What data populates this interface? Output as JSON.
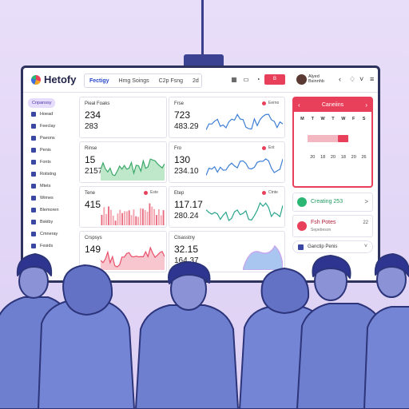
{
  "app": {
    "logo_text": "Hetofy"
  },
  "header": {
    "tabs": [
      {
        "label": "Fectigy",
        "active": true
      },
      {
        "label": "Hmg Soings",
        "active": false
      },
      {
        "label": "C2p Fsng",
        "active": false
      },
      {
        "label": "2d",
        "active": false
      },
      {
        "label": "B",
        "active": false
      }
    ],
    "user": {
      "name": "Alyed",
      "role": "Bsinnhb"
    },
    "accent": "#e8405a"
  },
  "sidebar": {
    "items": [
      {
        "label": "Cnpanssy",
        "icon": "grid-icon",
        "active": true
      },
      {
        "label": "Hoead",
        "icon": "home-icon"
      },
      {
        "label": "Feeclay",
        "icon": "pie-icon"
      },
      {
        "label": "Paeons",
        "icon": "user-icon"
      },
      {
        "label": "Penis",
        "icon": "doc-icon"
      },
      {
        "label": "Fonts",
        "icon": "star-icon"
      },
      {
        "label": "Rotistng",
        "icon": "folder-icon"
      },
      {
        "label": "Mtets",
        "icon": "chart-icon"
      },
      {
        "label": "Wimes",
        "icon": "gear-icon"
      },
      {
        "label": "Blemoren",
        "icon": "bell-icon"
      },
      {
        "label": "Bskiby",
        "icon": "tag-icon"
      },
      {
        "label": "Cmneray",
        "icon": "mail-icon"
      },
      {
        "label": "Fesids",
        "icon": "help-icon"
      }
    ]
  },
  "cards": [
    {
      "label": "Pieal Foaks",
      "v1": "234",
      "v2": "283",
      "badge": "",
      "chart": "none"
    },
    {
      "label": "Frse",
      "v1": "723",
      "v2": "483.29",
      "badge": "Eerno",
      "chart": "line-blue"
    },
    {
      "label": "Rinse",
      "v1": "15",
      "v2": "2157",
      "badge": "",
      "chart": "area-green"
    },
    {
      "label": "Fro",
      "v1": "130",
      "v2": "234.10",
      "badge": "Ent",
      "chart": "line-blue"
    },
    {
      "label": "Tene",
      "v1": "415",
      "v2": "",
      "badge": "Este",
      "chart": "bar-red"
    },
    {
      "label": "Etep",
      "v1": "117.17",
      "v2": "280.24",
      "badge": "Ctnte",
      "chart": "line-teal"
    },
    {
      "label": "Crspsys",
      "v1": "149",
      "v2": "",
      "badge": "",
      "chart": "area-red"
    },
    {
      "label": "Clsasstny",
      "v1": "32.15",
      "v2": "164.37",
      "badge": "",
      "chart": "blob-purple"
    }
  ],
  "calendar": {
    "title": "Caneiins",
    "weekdays": [
      "M",
      "T",
      "W",
      "T",
      "W",
      "F",
      "S"
    ],
    "cells": [
      "",
      "",
      "",
      "",
      "",
      "",
      "",
      "",
      "",
      "",
      "",
      "",
      "",
      "",
      "",
      "",
      "",
      "",
      "",
      "",
      "",
      "",
      "20",
      "18",
      "20",
      "18",
      "20",
      "26",
      "",
      "",
      "",
      "",
      "",
      "",
      ""
    ]
  },
  "right_panel": {
    "status": {
      "label": "Creating 253",
      "value": ">"
    },
    "task": {
      "label": "Fsh Potes",
      "detail": "Sepebeson",
      "value": "22"
    },
    "filter": {
      "label": "Ganctip Penis"
    }
  }
}
